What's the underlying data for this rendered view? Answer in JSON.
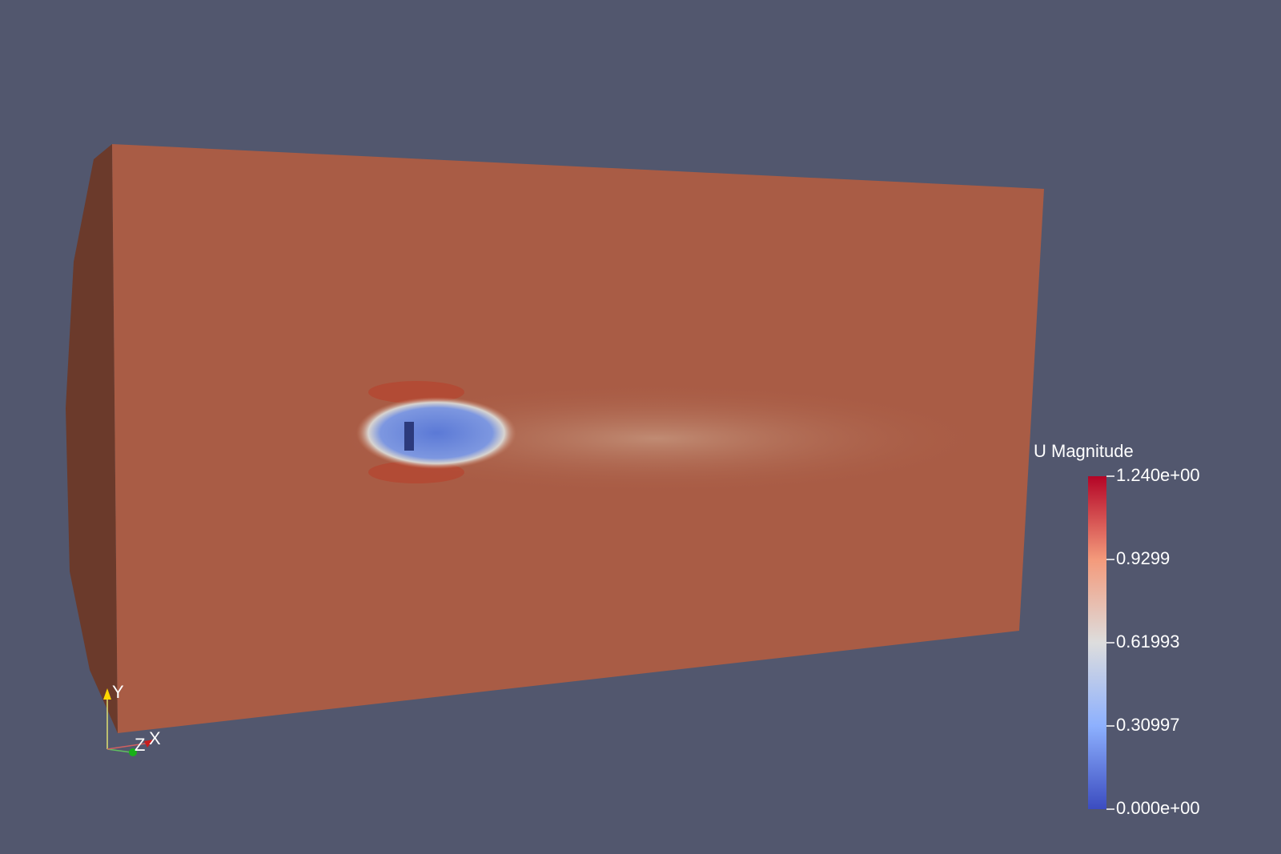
{
  "color_legend": {
    "title": "U Magnitude",
    "ticks": [
      {
        "value": 1.24,
        "label": "1.240e+00"
      },
      0.9299,
      0.61993,
      0.30997,
      {
        "value": 0,
        "label": "0.000e+00"
      }
    ]
  },
  "orientation_axes": {
    "labels": [
      "Y",
      "Z",
      "X"
    ]
  }
}
